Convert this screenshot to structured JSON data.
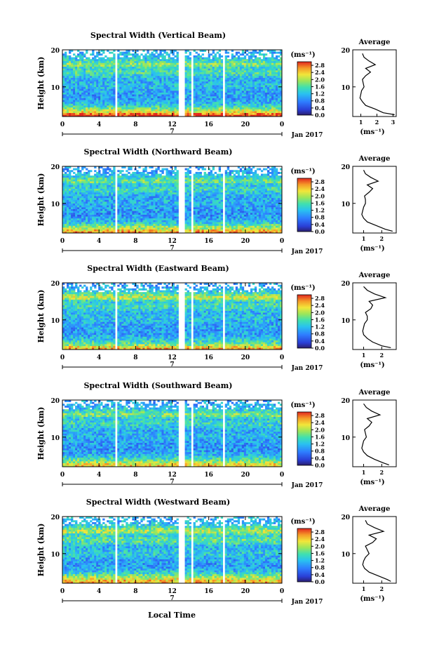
{
  "figure": {
    "xlabel": "Local Time",
    "date_label": "Jan 2017",
    "day_marker": "7",
    "ylabel": "Height (km)",
    "avg_title": "Average",
    "colorbar_unit": "(ms⁻¹)",
    "avg_xlabel": "(ms⁻¹)"
  },
  "chart_data": [
    {
      "type": "heatmap",
      "title": "Spectral Width (Vertical Beam)",
      "xlim": [
        0,
        24
      ],
      "ylim": [
        2,
        20
      ],
      "x_ticks": [
        "0",
        "4",
        "8",
        "12",
        "16",
        "20",
        "0"
      ],
      "y_ticks": [
        "10",
        "20"
      ],
      "colorbar_ticks": [
        "0.0",
        "0.4",
        "0.8",
        "1.2",
        "1.6",
        "2.0",
        "2.4",
        "2.8"
      ],
      "colorbar_range": [
        0,
        3.0
      ],
      "data_gaps_hours": [
        [
          5.7,
          5.9
        ],
        [
          12.8,
          13.3
        ],
        [
          14.0,
          14.4
        ],
        [
          17.6,
          17.8
        ]
      ],
      "average_profile": {
        "xlabel_ticks": [
          "1",
          "2",
          "3"
        ],
        "xlim": [
          0.5,
          3.2
        ],
        "height_km": [
          2.5,
          3,
          4,
          5,
          6,
          7,
          8,
          9,
          10,
          11,
          12,
          13,
          14,
          15,
          16,
          17,
          18,
          19
        ],
        "width_ms": [
          3.1,
          2.4,
          1.9,
          1.3,
          1.1,
          0.95,
          1.0,
          1.05,
          1.2,
          1.15,
          1.1,
          1.3,
          1.6,
          1.3,
          1.9,
          1.5,
          1.2,
          1.1
        ]
      }
    },
    {
      "type": "heatmap",
      "title": "Spectral Width (Northward Beam)",
      "xlim": [
        0,
        24
      ],
      "ylim": [
        2,
        20
      ],
      "x_ticks": [
        "0",
        "4",
        "8",
        "12",
        "16",
        "20",
        "0"
      ],
      "y_ticks": [
        "10",
        "20"
      ],
      "colorbar_ticks": [
        "0.0",
        "0.4",
        "0.8",
        "1.2",
        "1.6",
        "2.0",
        "2.4",
        "2.8"
      ],
      "colorbar_range": [
        0,
        3.0
      ],
      "data_gaps_hours": [
        [
          5.7,
          5.9
        ],
        [
          12.8,
          13.3
        ],
        [
          14.0,
          14.4
        ],
        [
          17.6,
          17.8
        ]
      ],
      "average_profile": {
        "xlabel_ticks": [
          "1",
          "2"
        ],
        "xlim": [
          0.4,
          2.8
        ],
        "height_km": [
          2.5,
          3,
          4,
          5,
          6,
          7,
          8,
          9,
          10,
          11,
          12,
          13,
          14,
          15,
          16,
          17,
          18,
          19
        ],
        "width_ms": [
          2.6,
          2.2,
          1.7,
          1.2,
          1.0,
          0.9,
          0.95,
          1.0,
          1.1,
          1.1,
          1.05,
          1.3,
          1.5,
          1.2,
          1.8,
          1.4,
          1.1,
          1.0
        ]
      }
    },
    {
      "type": "heatmap",
      "title": "Spectral Width (Eastward Beam)",
      "xlim": [
        0,
        24
      ],
      "ylim": [
        2,
        20
      ],
      "x_ticks": [
        "0",
        "4",
        "8",
        "12",
        "16",
        "20",
        "0"
      ],
      "y_ticks": [
        "10",
        "20"
      ],
      "colorbar_ticks": [
        "0.0",
        "0.4",
        "0.8",
        "1.2",
        "1.6",
        "2.0",
        "2.4",
        "2.8"
      ],
      "colorbar_range": [
        0,
        3.0
      ],
      "data_gaps_hours": [
        [
          5.7,
          5.9
        ],
        [
          12.8,
          13.3
        ],
        [
          14.0,
          14.4
        ],
        [
          17.6,
          17.8
        ]
      ],
      "average_profile": {
        "xlabel_ticks": [
          "1",
          "2"
        ],
        "xlim": [
          0.4,
          2.8
        ],
        "height_km": [
          2.5,
          3,
          4,
          5,
          6,
          7,
          8,
          9,
          10,
          11,
          12,
          13,
          14,
          15,
          16,
          17,
          18,
          19
        ],
        "width_ms": [
          2.5,
          2.0,
          1.5,
          1.2,
          1.0,
          0.95,
          1.0,
          1.05,
          1.2,
          1.2,
          1.1,
          1.4,
          1.5,
          1.3,
          2.2,
          1.6,
          1.2,
          1.0
        ]
      }
    },
    {
      "type": "heatmap",
      "title": "Spectral Width (Southward Beam)",
      "xlim": [
        0,
        24
      ],
      "ylim": [
        2,
        20
      ],
      "x_ticks": [
        "0",
        "4",
        "8",
        "12",
        "16",
        "20",
        "0"
      ],
      "y_ticks": [
        "10",
        "20"
      ],
      "colorbar_ticks": [
        "0.0",
        "0.4",
        "0.8",
        "1.2",
        "1.6",
        "2.0",
        "2.4",
        "2.8"
      ],
      "colorbar_range": [
        0,
        3.0
      ],
      "data_gaps_hours": [
        [
          5.7,
          5.9
        ],
        [
          12.8,
          13.3
        ],
        [
          14.0,
          14.4
        ],
        [
          17.6,
          17.8
        ]
      ],
      "average_profile": {
        "xlabel_ticks": [
          "1",
          "2"
        ],
        "xlim": [
          0.4,
          2.8
        ],
        "height_km": [
          2.5,
          3,
          4,
          5,
          6,
          7,
          8,
          9,
          10,
          11,
          12,
          13,
          14,
          15,
          16,
          17,
          18,
          19
        ],
        "width_ms": [
          2.4,
          2.1,
          1.6,
          1.2,
          1.0,
          0.9,
          0.95,
          1.0,
          1.15,
          1.1,
          1.05,
          1.3,
          1.45,
          1.2,
          1.9,
          1.45,
          1.15,
          1.0
        ]
      }
    },
    {
      "type": "heatmap",
      "title": "Spectral Width (Westward Beam)",
      "xlim": [
        0,
        24
      ],
      "ylim": [
        2,
        20
      ],
      "x_ticks": [
        "0",
        "4",
        "8",
        "12",
        "16",
        "20",
        "0"
      ],
      "y_ticks": [
        "10",
        "20"
      ],
      "colorbar_ticks": [
        "0.0",
        "0.4",
        "0.8",
        "1.2",
        "1.6",
        "2.0",
        "2.4",
        "2.8"
      ],
      "colorbar_range": [
        0,
        3.0
      ],
      "data_gaps_hours": [
        [
          5.7,
          5.9
        ],
        [
          12.8,
          13.3
        ],
        [
          14.0,
          14.4
        ],
        [
          17.6,
          17.8
        ]
      ],
      "average_profile": {
        "xlabel_ticks": [
          "1",
          "2"
        ],
        "xlim": [
          0.4,
          2.8
        ],
        "height_km": [
          2.5,
          3,
          4,
          5,
          6,
          7,
          8,
          9,
          10,
          11,
          12,
          13,
          14,
          15,
          16,
          17,
          18,
          19
        ],
        "width_ms": [
          2.5,
          2.3,
          1.8,
          1.3,
          1.05,
          0.95,
          1.0,
          1.1,
          1.3,
          1.2,
          1.1,
          1.5,
          1.7,
          1.3,
          2.1,
          1.6,
          1.2,
          1.1
        ]
      }
    }
  ]
}
